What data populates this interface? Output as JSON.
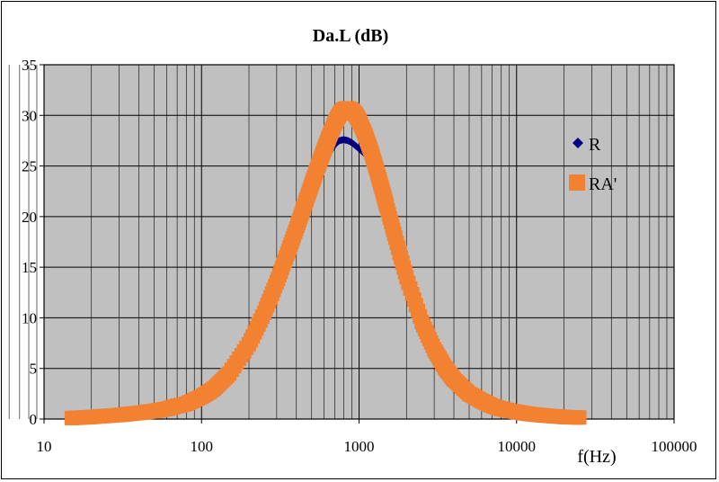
{
  "chart_data": {
    "type": "scatter",
    "title": "Da.L (dB)",
    "xlabel": "f(Hz)",
    "ylabel": "",
    "xscale": "log",
    "xlim": [
      10,
      100000
    ],
    "ylim": [
      0,
      35
    ],
    "x_ticks": [
      "10",
      "100",
      "1000",
      "10000",
      "100000"
    ],
    "y_ticks": [
      "0",
      "5",
      "10",
      "15",
      "20",
      "25",
      "30",
      "35"
    ],
    "grid": true,
    "legend_position": "right",
    "plot_background": "#c0c0c0",
    "series": [
      {
        "name": "R",
        "marker": "diamond",
        "color": "#000080",
        "points": [
          [
            15,
            0.1
          ],
          [
            20,
            0.2
          ],
          [
            30,
            0.4
          ],
          [
            40,
            0.6
          ],
          [
            50,
            0.8
          ],
          [
            60,
            1.1
          ],
          [
            70,
            1.3
          ],
          [
            80,
            1.6
          ],
          [
            100,
            2.3
          ],
          [
            120,
            3.2
          ],
          [
            150,
            4.9
          ],
          [
            200,
            8.0
          ],
          [
            250,
            11.3
          ],
          [
            300,
            14.3
          ],
          [
            350,
            17.0
          ],
          [
            400,
            19.3
          ],
          [
            450,
            21.2
          ],
          [
            500,
            22.9
          ],
          [
            550,
            24.3
          ],
          [
            600,
            25.5
          ],
          [
            650,
            26.4
          ],
          [
            700,
            27.1
          ],
          [
            750,
            27.5
          ],
          [
            800,
            27.6
          ],
          [
            850,
            27.5
          ],
          [
            900,
            27.3
          ],
          [
            950,
            27.0
          ],
          [
            1000,
            26.7
          ],
          [
            1100,
            26.1
          ],
          [
            1200,
            25.5
          ],
          [
            1300,
            24.9
          ]
        ]
      },
      {
        "name": "RA'",
        "marker": "square",
        "color": "#f28232",
        "points": [
          [
            15,
            0.1
          ],
          [
            20,
            0.2
          ],
          [
            30,
            0.4
          ],
          [
            40,
            0.6
          ],
          [
            50,
            0.8
          ],
          [
            60,
            1.0
          ],
          [
            70,
            1.3
          ],
          [
            80,
            1.5
          ],
          [
            100,
            2.2
          ],
          [
            120,
            3.0
          ],
          [
            150,
            4.5
          ],
          [
            200,
            7.4
          ],
          [
            250,
            10.5
          ],
          [
            300,
            13.5
          ],
          [
            350,
            16.3
          ],
          [
            400,
            18.8
          ],
          [
            450,
            21.1
          ],
          [
            500,
            23.2
          ],
          [
            550,
            25.0
          ],
          [
            600,
            26.6
          ],
          [
            650,
            28.0
          ],
          [
            700,
            29.2
          ],
          [
            750,
            30.1
          ],
          [
            800,
            30.6
          ],
          [
            850,
            30.7
          ],
          [
            900,
            30.5
          ],
          [
            950,
            30.1
          ],
          [
            1000,
            29.5
          ],
          [
            1100,
            28.0
          ],
          [
            1200,
            26.3
          ],
          [
            1300,
            24.5
          ],
          [
            1400,
            22.7
          ],
          [
            1500,
            21.0
          ],
          [
            1700,
            17.9
          ],
          [
            2000,
            14.0
          ],
          [
            2500,
            9.6
          ],
          [
            3000,
            6.9
          ],
          [
            3500,
            5.1
          ],
          [
            4000,
            3.9
          ],
          [
            5000,
            2.5
          ],
          [
            6000,
            1.8
          ],
          [
            7000,
            1.3
          ],
          [
            8000,
            1.0
          ],
          [
            10000,
            0.7
          ],
          [
            12000,
            0.5
          ],
          [
            15000,
            0.35
          ],
          [
            20000,
            0.2
          ],
          [
            25000,
            0.15
          ]
        ]
      }
    ]
  }
}
